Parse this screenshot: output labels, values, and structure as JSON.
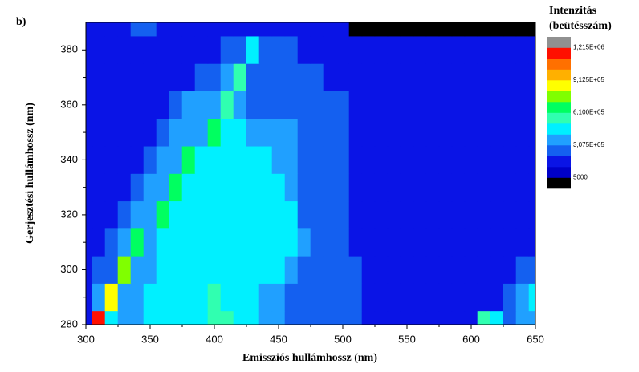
{
  "chart_data": {
    "type": "contour",
    "panel_label": "b)",
    "x_label": "Emissziós hullámhossz (nm)",
    "y_label": "Gerjesztési hullámhossz (nm)",
    "colorbar_title": [
      "Intenzitás",
      "(beütésszám)"
    ],
    "xlim": [
      300,
      650
    ],
    "ylim": [
      280,
      390
    ],
    "xticks": [
      300,
      350,
      400,
      450,
      500,
      550,
      600,
      650
    ],
    "yticks": [
      280,
      300,
      320,
      340,
      360,
      380
    ],
    "x": [
      300,
      310,
      320,
      330,
      340,
      350,
      360,
      370,
      380,
      390,
      400,
      410,
      420,
      430,
      440,
      450,
      460,
      470,
      480,
      490,
      500,
      510,
      520,
      530,
      540,
      550,
      560,
      570,
      580,
      590,
      600,
      610,
      620,
      630,
      640,
      650
    ],
    "y": [
      280,
      290,
      300,
      310,
      320,
      330,
      340,
      350,
      360,
      370,
      380,
      390
    ],
    "z": [
      [
        150000.0,
        1150000.0,
        450000.0,
        350000.0,
        350000.0,
        450000.0,
        450000.0,
        450000.0,
        450000.0,
        450000.0,
        550000.0,
        550000.0,
        450000.0,
        450000.0,
        350000.0,
        350000.0,
        250000.0,
        250000.0,
        250000.0,
        250000.0,
        250000.0,
        250000.0,
        150000.0,
        150000.0,
        150000.0,
        150000.0,
        150000.0,
        150000.0,
        150000.0,
        150000.0,
        150000.0,
        550000.0,
        450000.0,
        250000.0,
        350000.0,
        350000.0
      ],
      [
        150000.0,
        350000.0,
        850000.0,
        350000.0,
        350000.0,
        450000.0,
        450000.0,
        450000.0,
        450000.0,
        450000.0,
        550000.0,
        450000.0,
        450000.0,
        450000.0,
        350000.0,
        350000.0,
        250000.0,
        250000.0,
        250000.0,
        250000.0,
        250000.0,
        250000.0,
        150000.0,
        150000.0,
        150000.0,
        150000.0,
        150000.0,
        150000.0,
        150000.0,
        150000.0,
        150000.0,
        150000.0,
        150000.0,
        250000.0,
        350000.0,
        450000.0
      ],
      [
        150000.0,
        250000.0,
        250000.0,
        750000.0,
        350000.0,
        350000.0,
        450000.0,
        450000.0,
        450000.0,
        450000.0,
        450000.0,
        450000.0,
        450000.0,
        450000.0,
        450000.0,
        450000.0,
        350000.0,
        250000.0,
        250000.0,
        250000.0,
        250000.0,
        250000.0,
        150000.0,
        150000.0,
        150000.0,
        150000.0,
        150000.0,
        150000.0,
        150000.0,
        150000.0,
        150000.0,
        150000.0,
        150000.0,
        150000.0,
        250000.0,
        250000.0
      ],
      [
        150000.0,
        150000.0,
        250000.0,
        350000.0,
        650000.0,
        350000.0,
        450000.0,
        450000.0,
        450000.0,
        450000.0,
        450000.0,
        450000.0,
        450000.0,
        450000.0,
        450000.0,
        450000.0,
        450000.0,
        350000.0,
        250000.0,
        250000.0,
        250000.0,
        150000.0,
        150000.0,
        150000.0,
        150000.0,
        150000.0,
        150000.0,
        150000.0,
        150000.0,
        150000.0,
        150000.0,
        150000.0,
        150000.0,
        150000.0,
        150000.0,
        150000.0
      ],
      [
        150000.0,
        150000.0,
        150000.0,
        250000.0,
        350000.0,
        350000.0,
        650000.0,
        450000.0,
        450000.0,
        450000.0,
        450000.0,
        450000.0,
        450000.0,
        450000.0,
        450000.0,
        450000.0,
        450000.0,
        250000.0,
        250000.0,
        250000.0,
        250000.0,
        150000.0,
        150000.0,
        150000.0,
        150000.0,
        150000.0,
        150000.0,
        150000.0,
        150000.0,
        150000.0,
        150000.0,
        150000.0,
        150000.0,
        150000.0,
        150000.0,
        150000.0
      ],
      [
        150000.0,
        150000.0,
        150000.0,
        150000.0,
        250000.0,
        350000.0,
        350000.0,
        650000.0,
        450000.0,
        450000.0,
        450000.0,
        450000.0,
        450000.0,
        450000.0,
        450000.0,
        450000.0,
        350000.0,
        250000.0,
        250000.0,
        250000.0,
        250000.0,
        150000.0,
        150000.0,
        150000.0,
        150000.0,
        150000.0,
        150000.0,
        150000.0,
        150000.0,
        150000.0,
        150000.0,
        150000.0,
        150000.0,
        150000.0,
        150000.0,
        150000.0
      ],
      [
        150000.0,
        150000.0,
        150000.0,
        150000.0,
        150000.0,
        250000.0,
        350000.0,
        350000.0,
        650000.0,
        450000.0,
        450000.0,
        450000.0,
        450000.0,
        450000.0,
        450000.0,
        350000.0,
        350000.0,
        250000.0,
        250000.0,
        250000.0,
        250000.0,
        150000.0,
        150000.0,
        150000.0,
        150000.0,
        150000.0,
        150000.0,
        150000.0,
        150000.0,
        150000.0,
        150000.0,
        150000.0,
        150000.0,
        150000.0,
        150000.0,
        150000.0
      ],
      [
        150000.0,
        150000.0,
        150000.0,
        150000.0,
        150000.0,
        150000.0,
        250000.0,
        350000.0,
        350000.0,
        350000.0,
        650000.0,
        450000.0,
        450000.0,
        350000.0,
        350000.0,
        350000.0,
        350000.0,
        250000.0,
        250000.0,
        250000.0,
        250000.0,
        150000.0,
        150000.0,
        150000.0,
        150000.0,
        150000.0,
        150000.0,
        150000.0,
        150000.0,
        150000.0,
        150000.0,
        150000.0,
        150000.0,
        150000.0,
        150000.0,
        150000.0
      ],
      [
        150000.0,
        150000.0,
        150000.0,
        150000.0,
        150000.0,
        150000.0,
        150000.0,
        250000.0,
        350000.0,
        350000.0,
        350000.0,
        550000.0,
        350000.0,
        250000.0,
        250000.0,
        250000.0,
        250000.0,
        250000.0,
        250000.0,
        250000.0,
        250000.0,
        150000.0,
        150000.0,
        150000.0,
        150000.0,
        150000.0,
        150000.0,
        150000.0,
        150000.0,
        150000.0,
        150000.0,
        150000.0,
        150000.0,
        150000.0,
        150000.0,
        150000.0
      ],
      [
        150000.0,
        150000.0,
        150000.0,
        150000.0,
        150000.0,
        150000.0,
        150000.0,
        150000.0,
        150000.0,
        250000.0,
        250000.0,
        350000.0,
        550000.0,
        250000.0,
        250000.0,
        250000.0,
        250000.0,
        250000.0,
        250000.0,
        150000.0,
        150000.0,
        150000.0,
        150000.0,
        150000.0,
        150000.0,
        150000.0,
        150000.0,
        150000.0,
        150000.0,
        150000.0,
        150000.0,
        150000.0,
        150000.0,
        150000.0,
        150000.0,
        150000.0
      ],
      [
        150000.0,
        150000.0,
        150000.0,
        150000.0,
        150000.0,
        150000.0,
        150000.0,
        150000.0,
        150000.0,
        150000.0,
        150000.0,
        250000.0,
        250000.0,
        450000.0,
        250000.0,
        250000.0,
        250000.0,
        150000.0,
        150000.0,
        150000.0,
        150000.0,
        150000.0,
        150000.0,
        150000.0,
        150000.0,
        150000.0,
        150000.0,
        150000.0,
        150000.0,
        150000.0,
        150000.0,
        150000.0,
        150000.0,
        150000.0,
        150000.0,
        150000.0
      ],
      [
        150000.0,
        150000.0,
        150000.0,
        150000.0,
        250000.0,
        250000.0,
        150000.0,
        150000.0,
        150000.0,
        150000.0,
        150000.0,
        150000.0,
        150000.0,
        150000.0,
        150000.0,
        150000.0,
        150000.0,
        150000.0,
        150000.0,
        150000.0,
        150000.0,
        0,
        0,
        0,
        0,
        0,
        0,
        0,
        0,
        0,
        0,
        0,
        0,
        0,
        0,
        0
      ]
    ],
    "levels": [
      5000,
      105833,
      206667,
      307500,
      408333,
      509167,
      610000,
      710833,
      811667,
      912500,
      1013333,
      1114167,
      1215000
    ],
    "colors": [
      "#000000",
      "#0000c8",
      "#0a14e6",
      "#1460f0",
      "#20a0ff",
      "#00f0ff",
      "#30ffb0",
      "#00ff60",
      "#80ff00",
      "#ffff00",
      "#ffb000",
      "#ff7000",
      "#ff1000",
      "#909090"
    ],
    "colorbar_ticks": [
      {
        "value": 1215000,
        "label": "1,215E+06"
      },
      {
        "value": 912500,
        "label": "9,125E+05"
      },
      {
        "value": 610000,
        "label": "6,100E+05"
      },
      {
        "value": 307500,
        "label": "3,075E+05"
      },
      5000
    ]
  }
}
